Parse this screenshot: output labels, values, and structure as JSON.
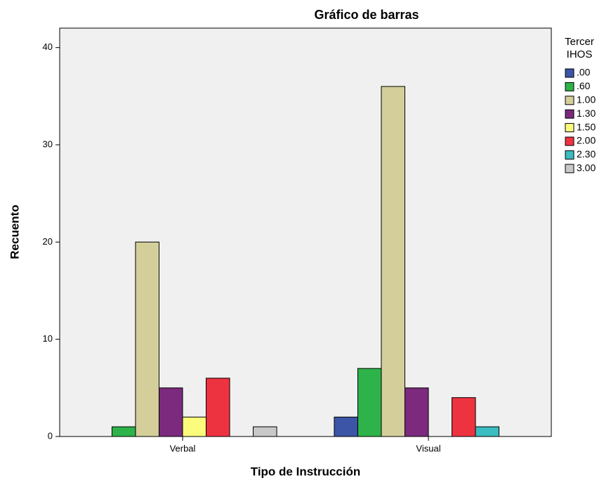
{
  "chart_data": {
    "type": "bar",
    "title": "Gráfico de barras",
    "x_label": "Tipo de Instrucción",
    "y_label": "Recuento",
    "legend_title": [
      "Tercer",
      "IHOS"
    ],
    "categories": [
      "Verbal",
      "Visual"
    ],
    "series": [
      {
        "name": ".00",
        "color": "#3d55a6",
        "values": [
          null,
          2
        ]
      },
      {
        "name": ".60",
        "color": "#2db34a",
        "values": [
          1,
          7
        ]
      },
      {
        "name": "1.00",
        "color": "#d4cf9a",
        "values": [
          20,
          36
        ]
      },
      {
        "name": "1.30",
        "color": "#7b2a7e",
        "values": [
          5,
          5
        ]
      },
      {
        "name": "1.50",
        "color": "#fdfb7c",
        "values": [
          2,
          null
        ]
      },
      {
        "name": "2.00",
        "color": "#ee3340",
        "values": [
          6,
          4
        ]
      },
      {
        "name": "2.30",
        "color": "#3bbcc0",
        "values": [
          null,
          1
        ]
      },
      {
        "name": "3.00",
        "color": "#c8c8c8",
        "values": [
          1,
          null
        ]
      }
    ],
    "ylim": [
      0,
      42
    ],
    "yticks": [
      0,
      10,
      20,
      30,
      40
    ],
    "legend": "right"
  }
}
